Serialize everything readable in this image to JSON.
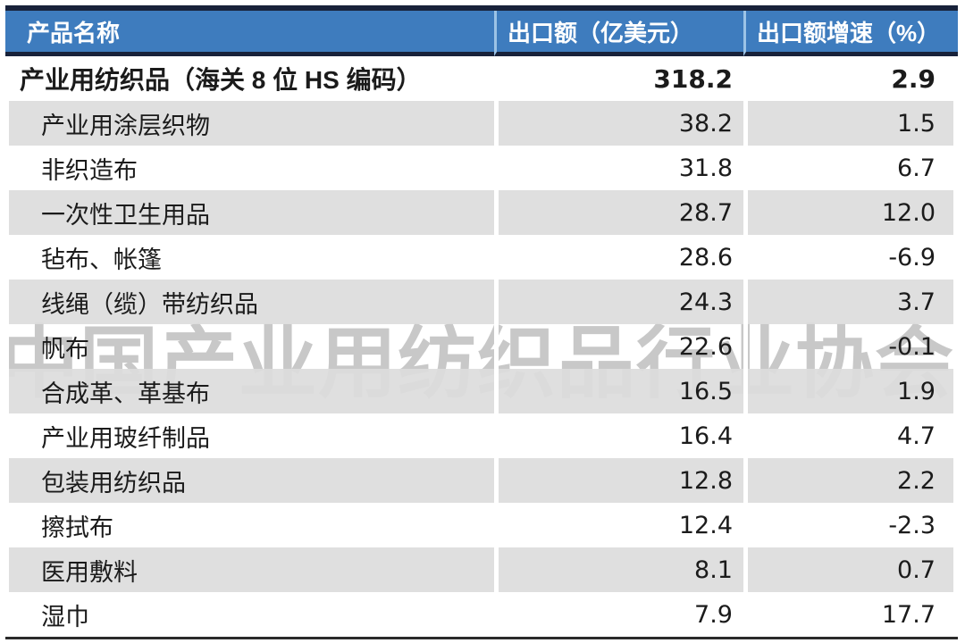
{
  "watermark": "中国产业用纺织品行业协会",
  "colors": {
    "header_blue": "#3e7cbe",
    "header_divider": "#9cc3e6",
    "dark_border": "#18223a",
    "row_gray": "#dcdcdc",
    "text": "#1b1b1b",
    "watermark_gray": "#c8c8c8"
  },
  "chart_data": {
    "type": "table",
    "columns": [
      "产品名称",
      "出口额（亿美元）",
      "出口额增速（%）"
    ],
    "rows": [
      {
        "name": "产业用纺织品（海关 8 位 HS 编码）",
        "export": "318.2",
        "growth": "2.9",
        "emphasis": true,
        "indent": false
      },
      {
        "name": "产业用涂层织物",
        "export": "38.2",
        "growth": "1.5",
        "indent": true
      },
      {
        "name": "非织造布",
        "export": "31.8",
        "growth": "6.7",
        "indent": true
      },
      {
        "name": "一次性卫生用品",
        "export": "28.7",
        "growth": "12.0",
        "indent": true
      },
      {
        "name": "毡布、帐篷",
        "export": "28.6",
        "growth": "-6.9",
        "indent": true
      },
      {
        "name": "线绳（缆）带纺织品",
        "export": "24.3",
        "growth": "3.7",
        "indent": true
      },
      {
        "name": "帆布",
        "export": "22.6",
        "growth": "-0.1",
        "indent": true
      },
      {
        "name": "合成革、革基布",
        "export": "16.5",
        "growth": "1.9",
        "indent": true
      },
      {
        "name": "产业用玻纤制品",
        "export": "16.4",
        "growth": "4.7",
        "indent": true
      },
      {
        "name": "包装用纺织品",
        "export": "12.8",
        "growth": "2.2",
        "indent": true
      },
      {
        "name": "擦拭布",
        "export": "12.4",
        "growth": "-2.3",
        "indent": true
      },
      {
        "name": "医用敷料",
        "export": "8.1",
        "growth": "0.7",
        "indent": true
      },
      {
        "name": "湿巾",
        "export": "7.9",
        "growth": "17.7",
        "indent": true
      }
    ]
  }
}
